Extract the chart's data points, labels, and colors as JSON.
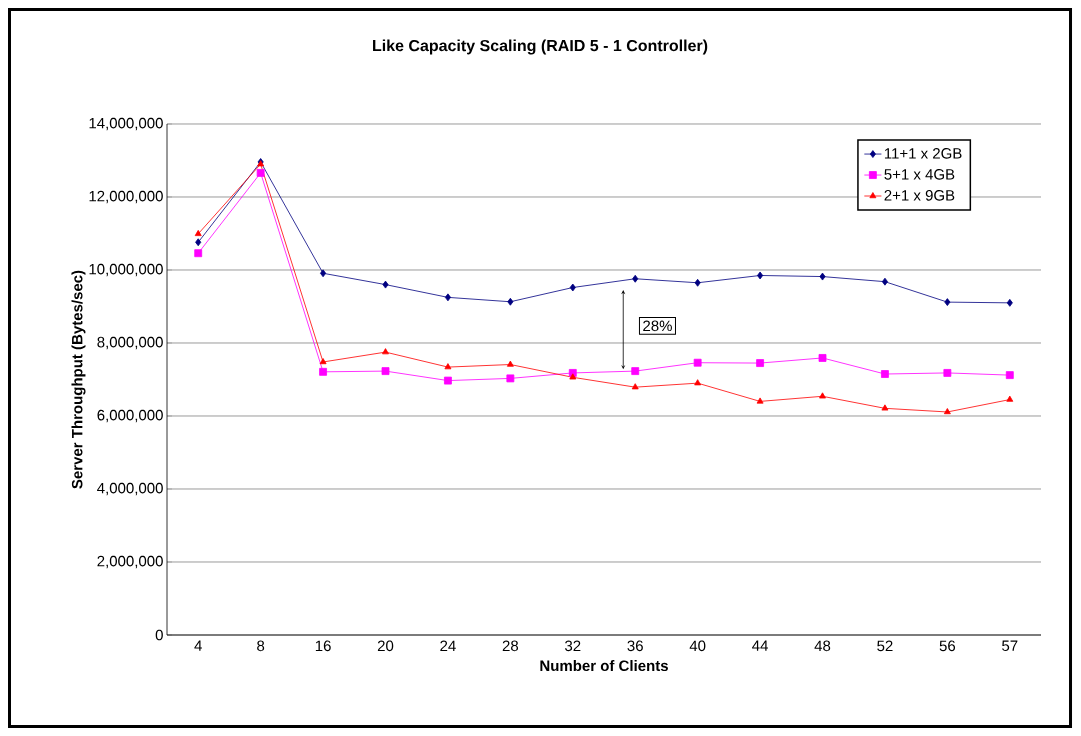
{
  "chart_data": {
    "type": "line",
    "title": "Like Capacity Scaling (RAID 5 - 1 Controller)",
    "xlabel": "Number of Clients",
    "ylabel": "Server Throughput (Bytes/sec)",
    "categories": [
      "4",
      "8",
      "16",
      "20",
      "24",
      "28",
      "32",
      "36",
      "40",
      "44",
      "48",
      "52",
      "56",
      "57"
    ],
    "series": [
      {
        "name": "11+1 x 2GB",
        "color": "#000080",
        "marker": "diamond",
        "values": [
          10760000,
          12960000,
          9910000,
          9600000,
          9250000,
          9130000,
          9520000,
          9760000,
          9650000,
          9850000,
          9820000,
          9680000,
          9120000,
          9100000
        ]
      },
      {
        "name": "5+1 x 4GB",
        "color": "#ff00ff",
        "marker": "square",
        "values": [
          10460000,
          12660000,
          7210000,
          7230000,
          6970000,
          7030000,
          7180000,
          7230000,
          7460000,
          7450000,
          7590000,
          7150000,
          7180000,
          7120000
        ]
      },
      {
        "name": "2+1 x 9GB",
        "color": "#ff0000",
        "marker": "triangle",
        "values": [
          10990000,
          12900000,
          7480000,
          7750000,
          7340000,
          7410000,
          7060000,
          6790000,
          6900000,
          6400000,
          6540000,
          6210000,
          6110000,
          6450000
        ]
      }
    ],
    "ylim": [
      0,
      14000000
    ],
    "yticks": [
      0,
      {
        "value": 2000000,
        "label": "2,000,000"
      },
      {
        "value": 4000000,
        "label": "4,000,000"
      },
      {
        "value": 6000000,
        "label": "6,000,000"
      },
      {
        "value": 8000000,
        "label": "8,000,000"
      },
      {
        "value": 10000000,
        "label": "10,000,000"
      },
      {
        "value": 12000000,
        "label": "12,000,000"
      },
      {
        "value": 14000000,
        "label": "14,000,000"
      }
    ],
    "grid": "y",
    "legend": "top right",
    "line_style": "solid",
    "annotations": [
      "28%"
    ]
  }
}
